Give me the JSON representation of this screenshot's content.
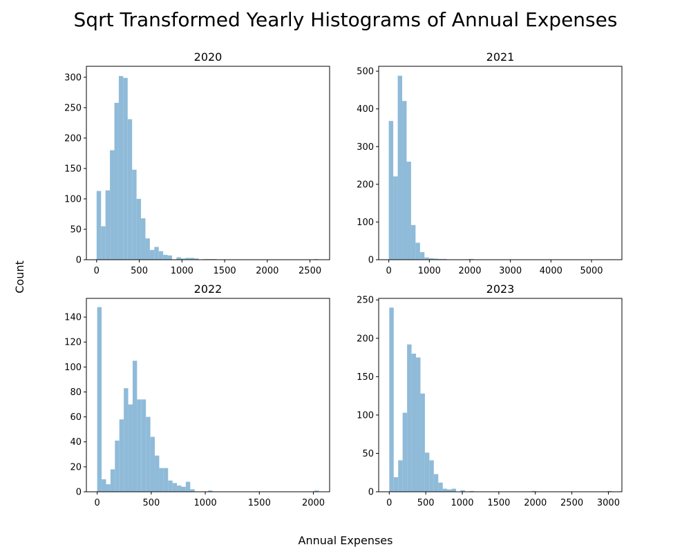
{
  "title": "Sqrt Transformed Yearly Histograms of Annual Expenses",
  "xlabel": "Annual Expenses",
  "ylabel": "Count",
  "colors": {
    "bar": "#8fbbd9",
    "axis": "#000000",
    "background": "#ffffff"
  },
  "chart_data": [
    {
      "type": "bar",
      "title": "2020",
      "bin_start": 0,
      "bin_width": 52,
      "values": [
        113,
        55,
        114,
        180,
        258,
        302,
        299,
        231,
        148,
        100,
        68,
        35,
        16,
        21,
        14,
        8,
        7,
        0,
        4,
        2,
        3,
        3,
        2,
        0,
        1,
        1,
        1,
        0,
        0,
        0,
        0,
        0,
        0,
        0,
        0,
        0,
        0,
        0,
        0,
        0,
        0,
        0,
        0,
        0,
        0,
        0,
        0,
        0,
        0,
        1
      ],
      "xlim": [
        -120,
        2730
      ],
      "ylim": [
        0,
        318
      ],
      "xticks": [
        0,
        500,
        1000,
        1500,
        2000,
        2500
      ],
      "yticks": [
        0,
        50,
        100,
        150,
        200,
        250,
        300
      ]
    },
    {
      "type": "bar",
      "title": "2021",
      "bin_start": 0,
      "bin_width": 110,
      "values": [
        368,
        221,
        488,
        421,
        260,
        92,
        45,
        20,
        6,
        4,
        3,
        2,
        2,
        1,
        0,
        0,
        0,
        0,
        2,
        0,
        0,
        0,
        0,
        0,
        0,
        0,
        0,
        0,
        0,
        0,
        0,
        0,
        0,
        0,
        0,
        0,
        0,
        0,
        0,
        0,
        0,
        0,
        0,
        0,
        0,
        0,
        0,
        0,
        0,
        1
      ],
      "xlim": [
        -250,
        5750
      ],
      "ylim": [
        0,
        513
      ],
      "xticks": [
        0,
        1000,
        2000,
        3000,
        4000,
        5000
      ],
      "yticks": [
        0,
        100,
        200,
        300,
        400,
        500
      ]
    },
    {
      "type": "bar",
      "title": "2022",
      "bin_start": 0,
      "bin_width": 41,
      "values": [
        148,
        10,
        6,
        18,
        41,
        58,
        83,
        70,
        105,
        74,
        74,
        60,
        44,
        29,
        19,
        19,
        9,
        7,
        5,
        4,
        8,
        2,
        0,
        0,
        0,
        1,
        0,
        0,
        0,
        0,
        0,
        0,
        0,
        0,
        0,
        0,
        0,
        0,
        0,
        0,
        0,
        0,
        0,
        0,
        0,
        0,
        0,
        0,
        0,
        1
      ],
      "xlim": [
        -100,
        2150
      ],
      "ylim": [
        0,
        155
      ],
      "xticks": [
        0,
        500,
        1000,
        1500,
        2000
      ],
      "yticks": [
        0,
        20,
        40,
        60,
        80,
        100,
        120,
        140
      ]
    },
    {
      "type": "bar",
      "title": "2023",
      "bin_start": 0,
      "bin_width": 61,
      "values": [
        240,
        19,
        41,
        103,
        192,
        180,
        175,
        128,
        51,
        41,
        23,
        12,
        4,
        3,
        4,
        0,
        2,
        0,
        1,
        0,
        0,
        0,
        0,
        0,
        0,
        0,
        0,
        0,
        0,
        0,
        0,
        0,
        1,
        0,
        0,
        0,
        0,
        0,
        0,
        0,
        0,
        0,
        0,
        0,
        0,
        0,
        0,
        0,
        0,
        1
      ],
      "xlim": [
        -145,
        3185
      ],
      "ylim": [
        0,
        252
      ],
      "xticks": [
        0,
        500,
        1000,
        1500,
        2000,
        2500,
        3000
      ],
      "yticks": [
        0,
        50,
        100,
        150,
        200,
        250
      ]
    }
  ]
}
